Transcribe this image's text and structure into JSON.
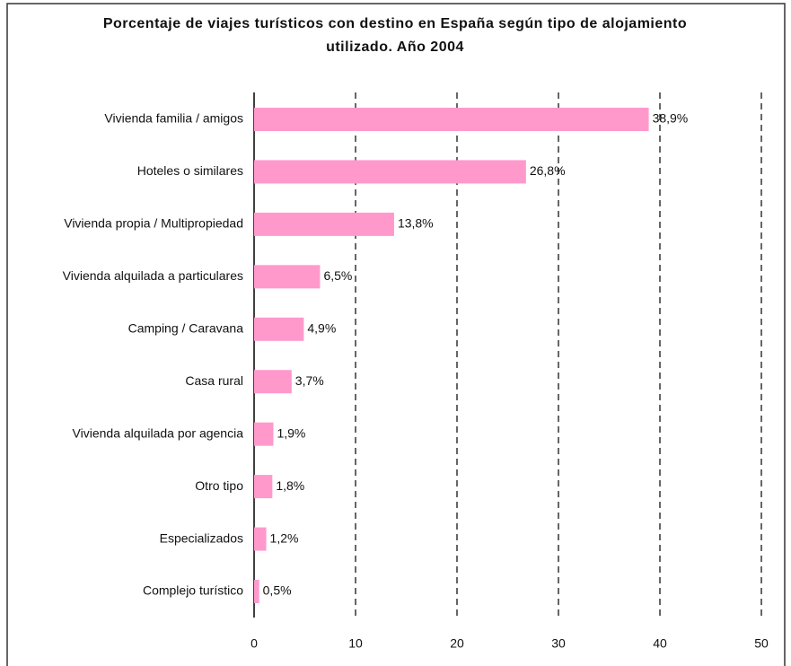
{
  "chart_data": {
    "type": "bar",
    "orientation": "horizontal",
    "title": "Porcentaje de viajes turísticos con destino en España según tipo de alojamiento utilizado. Año 2004",
    "categories": [
      "Vivienda familia / amigos",
      "Hoteles o similares",
      "Vivienda propia / Multipropiedad",
      "Vivienda alquilada a particulares",
      "Camping / Caravana",
      "Casa rural",
      "Vivienda alquilada por agencia",
      "Otro tipo",
      "Especializados",
      "Complejo turístico"
    ],
    "values": [
      38.9,
      26.8,
      13.8,
      6.5,
      4.9,
      3.7,
      1.9,
      1.8,
      1.2,
      0.5
    ],
    "value_labels": [
      "38,9%",
      "26,8%",
      "13,8%",
      "6,5%",
      "4,9%",
      "3,7%",
      "1,9%",
      "1,8%",
      "1,2%",
      "0,5%"
    ],
    "color": "#ff99cc",
    "xlim": [
      0,
      50
    ],
    "xticks": [
      0,
      10,
      20,
      30,
      40,
      50
    ],
    "grid": true
  }
}
